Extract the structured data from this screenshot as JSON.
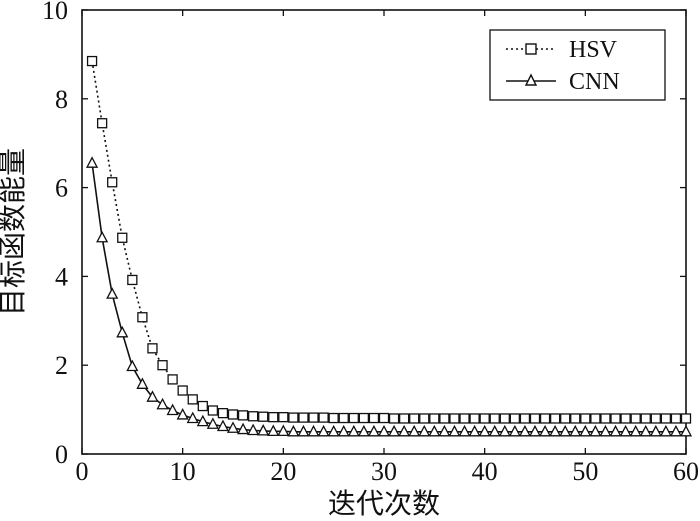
{
  "chart_data": {
    "type": "line",
    "xlabel": "迭代次数",
    "ylabel": "目标函数能量",
    "xlim": [
      0,
      60
    ],
    "ylim": [
      0,
      10
    ],
    "xticks": [
      0,
      10,
      20,
      30,
      40,
      50,
      60
    ],
    "yticks": [
      0,
      2,
      4,
      6,
      8,
      10
    ],
    "grid": false,
    "legend_position": "top-right",
    "x": [
      1,
      2,
      3,
      4,
      5,
      6,
      7,
      8,
      9,
      10,
      11,
      12,
      13,
      14,
      15,
      16,
      17,
      18,
      19,
      20,
      21,
      22,
      23,
      24,
      25,
      26,
      27,
      28,
      29,
      30,
      31,
      32,
      33,
      34,
      35,
      36,
      37,
      38,
      39,
      40,
      41,
      42,
      43,
      44,
      45,
      46,
      47,
      48,
      49,
      50,
      51,
      52,
      53,
      54,
      55,
      56,
      57,
      58,
      59,
      60
    ],
    "series": [
      {
        "name": "HSV",
        "line_style": "dotted",
        "marker": "square",
        "color": "#111111",
        "values": [
          8.85,
          7.45,
          6.12,
          4.87,
          3.92,
          3.08,
          2.38,
          2.0,
          1.68,
          1.43,
          1.23,
          1.08,
          0.98,
          0.92,
          0.89,
          0.87,
          0.85,
          0.84,
          0.83,
          0.83,
          0.82,
          0.82,
          0.82,
          0.82,
          0.81,
          0.81,
          0.81,
          0.81,
          0.81,
          0.81,
          0.8,
          0.8,
          0.8,
          0.8,
          0.8,
          0.8,
          0.8,
          0.8,
          0.8,
          0.8,
          0.8,
          0.8,
          0.8,
          0.8,
          0.8,
          0.8,
          0.8,
          0.8,
          0.8,
          0.8,
          0.8,
          0.8,
          0.8,
          0.8,
          0.8,
          0.8,
          0.8,
          0.8,
          0.8,
          0.8
        ]
      },
      {
        "name": "CNN",
        "line_style": "solid",
        "marker": "triangle",
        "color": "#111111",
        "values": [
          6.55,
          4.87,
          3.6,
          2.73,
          1.97,
          1.57,
          1.28,
          1.11,
          0.98,
          0.88,
          0.8,
          0.73,
          0.67,
          0.62,
          0.58,
          0.55,
          0.53,
          0.52,
          0.51,
          0.51,
          0.5,
          0.5,
          0.5,
          0.5,
          0.5,
          0.5,
          0.5,
          0.5,
          0.5,
          0.5,
          0.5,
          0.5,
          0.5,
          0.5,
          0.5,
          0.5,
          0.5,
          0.5,
          0.5,
          0.5,
          0.5,
          0.5,
          0.5,
          0.5,
          0.5,
          0.5,
          0.5,
          0.5,
          0.5,
          0.5,
          0.5,
          0.5,
          0.5,
          0.5,
          0.5,
          0.5,
          0.5,
          0.5,
          0.5,
          0.5
        ]
      }
    ]
  }
}
